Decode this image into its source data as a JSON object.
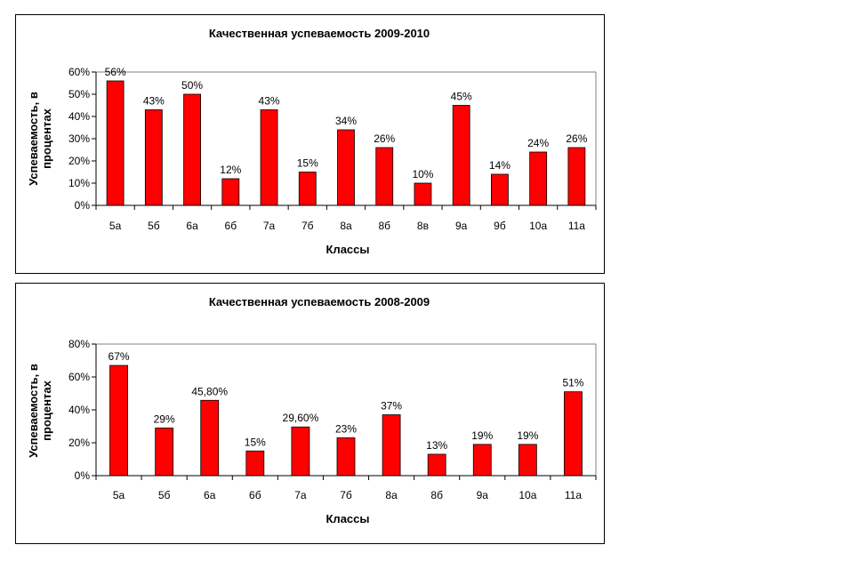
{
  "chart_data": [
    {
      "type": "bar",
      "title": "Качественная успеваемость 2009-2010",
      "xlabel": "Классы",
      "ylabel": "Успеваемость, в процентах",
      "ylabel_lines": [
        "Успеваемость, в",
        "процентах"
      ],
      "categories": [
        "5а",
        "5б",
        "6а",
        "6б",
        "7а",
        "7б",
        "8а",
        "8б",
        "8в",
        "9а",
        "9б",
        "10а",
        "11а"
      ],
      "values": [
        56,
        43,
        50,
        12,
        43,
        15,
        34,
        26,
        10,
        45,
        14,
        24,
        26
      ],
      "data_labels": [
        "56%",
        "43%",
        "50%",
        "12%",
        "43%",
        "15%",
        "34%",
        "26%",
        "10%",
        "45%",
        "14%",
        "24%",
        "26%"
      ],
      "ylim": [
        0,
        60
      ],
      "yticks": [
        0,
        10,
        20,
        30,
        40,
        50,
        60
      ],
      "ytick_labels": [
        "0%",
        "10%",
        "20%",
        "30%",
        "40%",
        "50%",
        "60%"
      ],
      "bar_color": "#ff0000",
      "grid": false,
      "legend": "none"
    },
    {
      "type": "bar",
      "title": "Качественная успеваемость 2008-2009",
      "xlabel": "Классы",
      "ylabel": "Успеваемость, в процентах",
      "ylabel_lines": [
        "Успеваемость, в",
        "процентах"
      ],
      "categories": [
        "5а",
        "5б",
        "6а",
        "6б",
        "7а",
        "7б",
        "8а",
        "8б",
        "9а",
        "10а",
        "11а"
      ],
      "values": [
        67,
        29,
        45.8,
        15,
        29.6,
        23,
        37,
        13,
        19,
        19,
        51
      ],
      "data_labels": [
        "67%",
        "29%",
        "45,80%",
        "15%",
        "29,60%",
        "23%",
        "37%",
        "13%",
        "19%",
        "19%",
        "51%"
      ],
      "ylim": [
        0,
        80
      ],
      "yticks": [
        0,
        20,
        40,
        60,
        80
      ],
      "ytick_labels": [
        "0%",
        "20%",
        "40%",
        "60%",
        "80%"
      ],
      "bar_color": "#ff0000",
      "grid": false,
      "legend": "none"
    }
  ]
}
